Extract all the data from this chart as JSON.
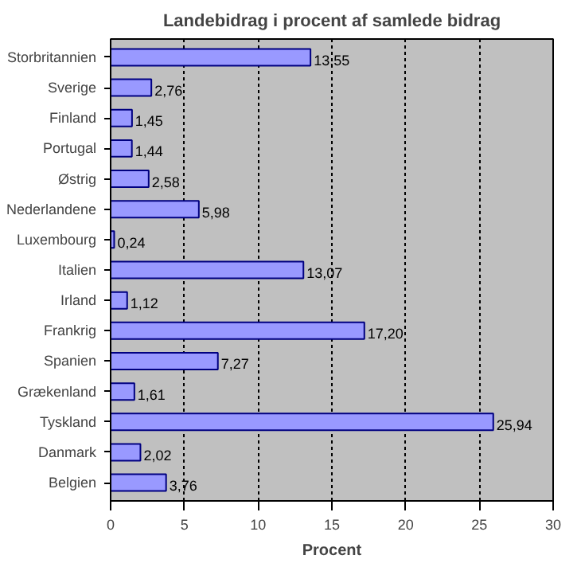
{
  "chart_data": {
    "type": "bar",
    "orientation": "horizontal",
    "title": "Landebidrag i procent af samlede bidrag",
    "xlabel": "Procent",
    "categories": [
      "Storbritannien",
      "Sverige",
      "Finland",
      "Portugal",
      "Østrig",
      "Nederlandene",
      "Luxembourg",
      "Italien",
      "Irland",
      "Frankrig",
      "Spanien",
      "Grækenland",
      "Tyskland",
      "Danmark",
      "Belgien"
    ],
    "values": [
      13.55,
      2.76,
      1.45,
      1.44,
      2.58,
      5.98,
      0.24,
      13.07,
      1.12,
      17.2,
      7.27,
      1.61,
      25.94,
      2.02,
      3.76
    ],
    "value_labels": [
      "13,55",
      "2,76",
      "1,45",
      "1,44",
      "2,58",
      "5,98",
      "0,24",
      "13,07",
      "1,12",
      "17,20",
      "7,27",
      "1,61",
      "25,94",
      "2,02",
      "3,76"
    ],
    "color": "#9999ff",
    "xlim": [
      0,
      30
    ],
    "xticks": [
      0,
      5,
      10,
      15,
      20,
      25,
      30
    ],
    "grid": "x"
  }
}
